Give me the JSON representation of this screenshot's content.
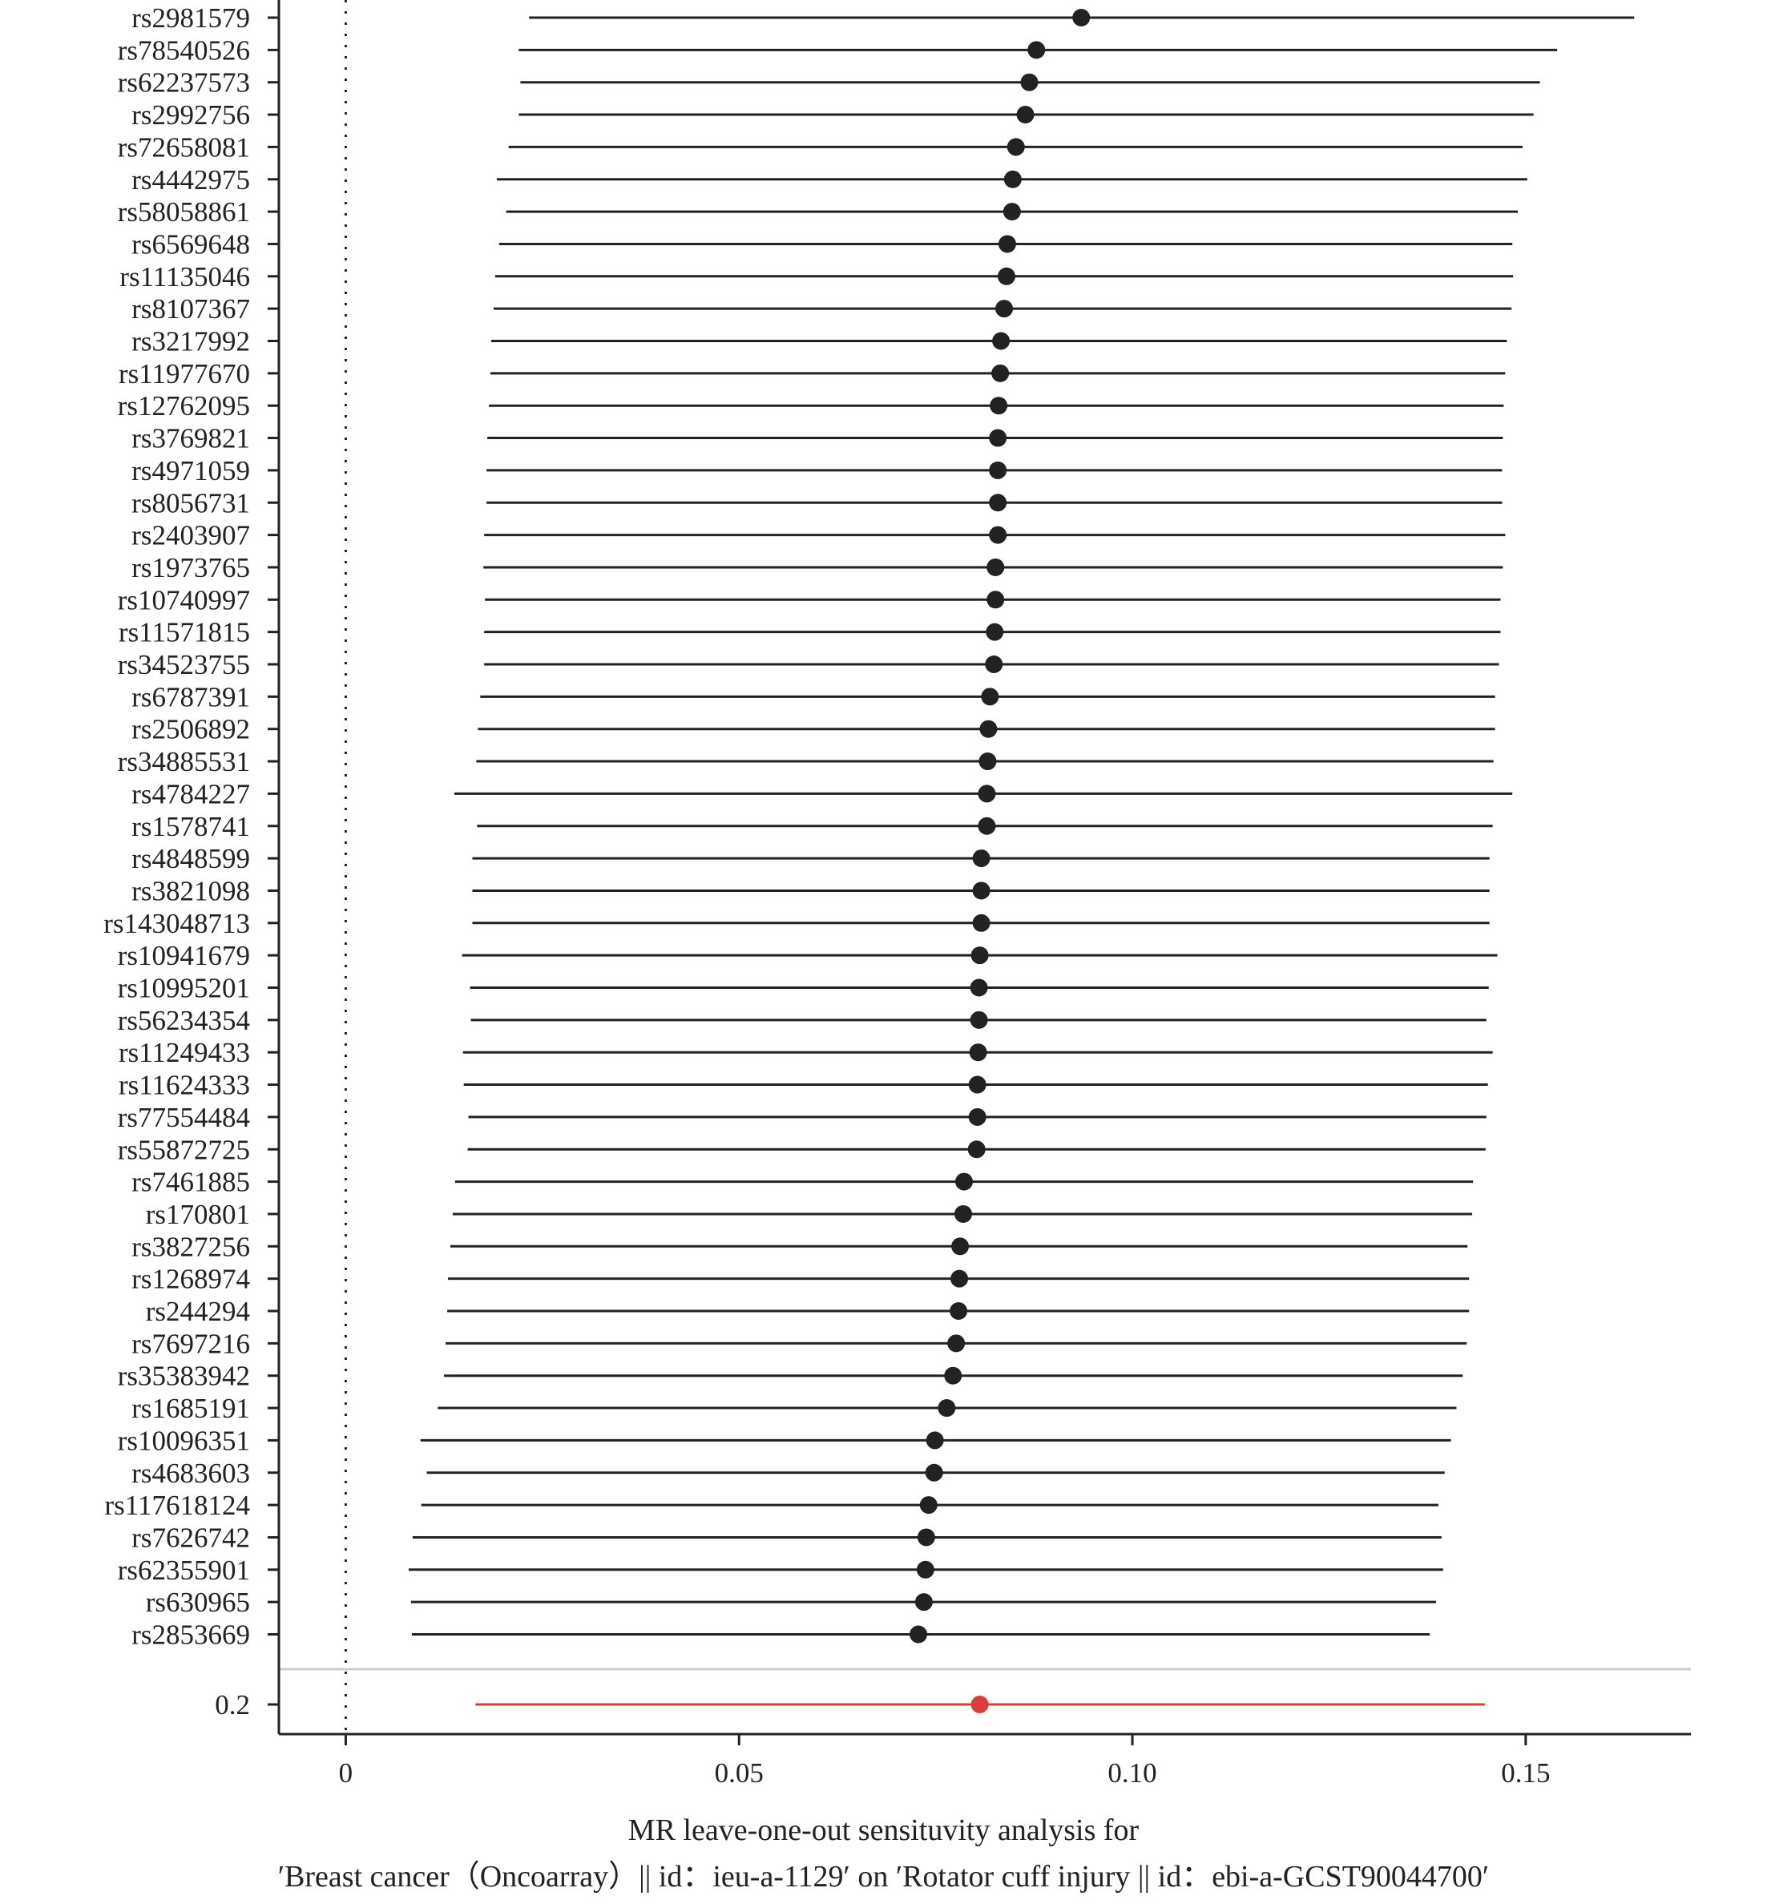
{
  "chart_data": {
    "type": "forest",
    "xlabel_line1": "MR leave-one-out sensituvity analysis for",
    "xlabel_line2": "′Breast cancer（Oncoarray）|| id：ieu-a-1129′ on ′Rotator cuff injury || id：ebi-a-GCST90044700′",
    "xlim": [
      -0.0085,
      0.171
    ],
    "xticks": [
      0,
      0.05,
      0.1,
      0.15
    ],
    "xtick_labels": [
      "0",
      "0.05",
      "0.10",
      "0.15"
    ],
    "reference_line": 0,
    "point_color": "#222222",
    "overall_color": "#e03a3a",
    "separator_color": "#cccccc",
    "rows": [
      {
        "label": "rs2981579",
        "estimate": 0.0935,
        "lower": 0.0233,
        "upper": 0.1638
      },
      {
        "label": "rs78540526",
        "estimate": 0.0878,
        "lower": 0.022,
        "upper": 0.154
      },
      {
        "label": "rs62237573",
        "estimate": 0.0869,
        "lower": 0.0222,
        "upper": 0.1518
      },
      {
        "label": "rs2992756",
        "estimate": 0.0864,
        "lower": 0.022,
        "upper": 0.151
      },
      {
        "label": "rs72658081",
        "estimate": 0.0852,
        "lower": 0.0207,
        "upper": 0.1496
      },
      {
        "label": "rs4442975",
        "estimate": 0.0848,
        "lower": 0.0192,
        "upper": 0.1502
      },
      {
        "label": "rs58058861",
        "estimate": 0.0847,
        "lower": 0.0204,
        "upper": 0.149
      },
      {
        "label": "rs6569648",
        "estimate": 0.0841,
        "lower": 0.0195,
        "upper": 0.1483
      },
      {
        "label": "rs11135046",
        "estimate": 0.084,
        "lower": 0.019,
        "upper": 0.1484
      },
      {
        "label": "rs8107367",
        "estimate": 0.0837,
        "lower": 0.0188,
        "upper": 0.1482
      },
      {
        "label": "rs3217992",
        "estimate": 0.0833,
        "lower": 0.0185,
        "upper": 0.1476
      },
      {
        "label": "rs11977670",
        "estimate": 0.0832,
        "lower": 0.0184,
        "upper": 0.1474
      },
      {
        "label": "rs12762095",
        "estimate": 0.083,
        "lower": 0.0182,
        "upper": 0.1472
      },
      {
        "label": "rs3769821",
        "estimate": 0.0829,
        "lower": 0.018,
        "upper": 0.1471
      },
      {
        "label": "rs4971059",
        "estimate": 0.0829,
        "lower": 0.0179,
        "upper": 0.147
      },
      {
        "label": "rs8056731",
        "estimate": 0.0829,
        "lower": 0.0179,
        "upper": 0.147
      },
      {
        "label": "rs2403907",
        "estimate": 0.0829,
        "lower": 0.0176,
        "upper": 0.1474
      },
      {
        "label": "rs1973765",
        "estimate": 0.0826,
        "lower": 0.0175,
        "upper": 0.1471
      },
      {
        "label": "rs10740997",
        "estimate": 0.0826,
        "lower": 0.0177,
        "upper": 0.1468
      },
      {
        "label": "rs11571815",
        "estimate": 0.0825,
        "lower": 0.0176,
        "upper": 0.1468
      },
      {
        "label": "rs34523755",
        "estimate": 0.0824,
        "lower": 0.0176,
        "upper": 0.1466
      },
      {
        "label": "rs6787391",
        "estimate": 0.0819,
        "lower": 0.0171,
        "upper": 0.1461
      },
      {
        "label": "rs2506892",
        "estimate": 0.0817,
        "lower": 0.0168,
        "upper": 0.1461
      },
      {
        "label": "rs34885531",
        "estimate": 0.0816,
        "lower": 0.0166,
        "upper": 0.1459
      },
      {
        "label": "rs4784227",
        "estimate": 0.0815,
        "lower": 0.0138,
        "upper": 0.1483
      },
      {
        "label": "rs1578741",
        "estimate": 0.0815,
        "lower": 0.0167,
        "upper": 0.1458
      },
      {
        "label": "rs4848599",
        "estimate": 0.0808,
        "lower": 0.0161,
        "upper": 0.1454
      },
      {
        "label": "rs3821098",
        "estimate": 0.0808,
        "lower": 0.0161,
        "upper": 0.1454
      },
      {
        "label": "rs143048713",
        "estimate": 0.0808,
        "lower": 0.0161,
        "upper": 0.1454
      },
      {
        "label": "rs10941679",
        "estimate": 0.0806,
        "lower": 0.0148,
        "upper": 0.1464
      },
      {
        "label": "rs10995201",
        "estimate": 0.0805,
        "lower": 0.0158,
        "upper": 0.1453
      },
      {
        "label": "rs56234354",
        "estimate": 0.0805,
        "lower": 0.0159,
        "upper": 0.145
      },
      {
        "label": "rs11249433",
        "estimate": 0.0804,
        "lower": 0.0149,
        "upper": 0.1458
      },
      {
        "label": "rs11624333",
        "estimate": 0.0803,
        "lower": 0.015,
        "upper": 0.1452
      },
      {
        "label": "rs77554484",
        "estimate": 0.0803,
        "lower": 0.0156,
        "upper": 0.145
      },
      {
        "label": "rs55872725",
        "estimate": 0.0802,
        "lower": 0.0155,
        "upper": 0.1449
      },
      {
        "label": "rs7461885",
        "estimate": 0.0786,
        "lower": 0.0139,
        "upper": 0.1433
      },
      {
        "label": "rs170801",
        "estimate": 0.0785,
        "lower": 0.0136,
        "upper": 0.1432
      },
      {
        "label": "rs3827256",
        "estimate": 0.0781,
        "lower": 0.0133,
        "upper": 0.1426
      },
      {
        "label": "rs1268974",
        "estimate": 0.078,
        "lower": 0.013,
        "upper": 0.1428
      },
      {
        "label": "rs244294",
        "estimate": 0.0779,
        "lower": 0.0129,
        "upper": 0.1428
      },
      {
        "label": "rs7697216",
        "estimate": 0.0776,
        "lower": 0.0127,
        "upper": 0.1425
      },
      {
        "label": "rs35383942",
        "estimate": 0.0772,
        "lower": 0.0125,
        "upper": 0.142
      },
      {
        "label": "rs1685191",
        "estimate": 0.0764,
        "lower": 0.0117,
        "upper": 0.1412
      },
      {
        "label": "rs10096351",
        "estimate": 0.0749,
        "lower": 0.0095,
        "upper": 0.1405
      },
      {
        "label": "rs4683603",
        "estimate": 0.0748,
        "lower": 0.0103,
        "upper": 0.1397
      },
      {
        "label": "rs117618124",
        "estimate": 0.0741,
        "lower": 0.0096,
        "upper": 0.1389
      },
      {
        "label": "rs7626742",
        "estimate": 0.0738,
        "lower": 0.0085,
        "upper": 0.1393
      },
      {
        "label": "rs62355901",
        "estimate": 0.0737,
        "lower": 0.008,
        "upper": 0.1395
      },
      {
        "label": "rs630965",
        "estimate": 0.0735,
        "lower": 0.0083,
        "upper": 0.1386
      },
      {
        "label": "rs2853669",
        "estimate": 0.0728,
        "lower": 0.0084,
        "upper": 0.1378
      }
    ],
    "overall": {
      "label": "0.2",
      "estimate": 0.0806,
      "lower": 0.0165,
      "upper": 0.1448
    }
  }
}
